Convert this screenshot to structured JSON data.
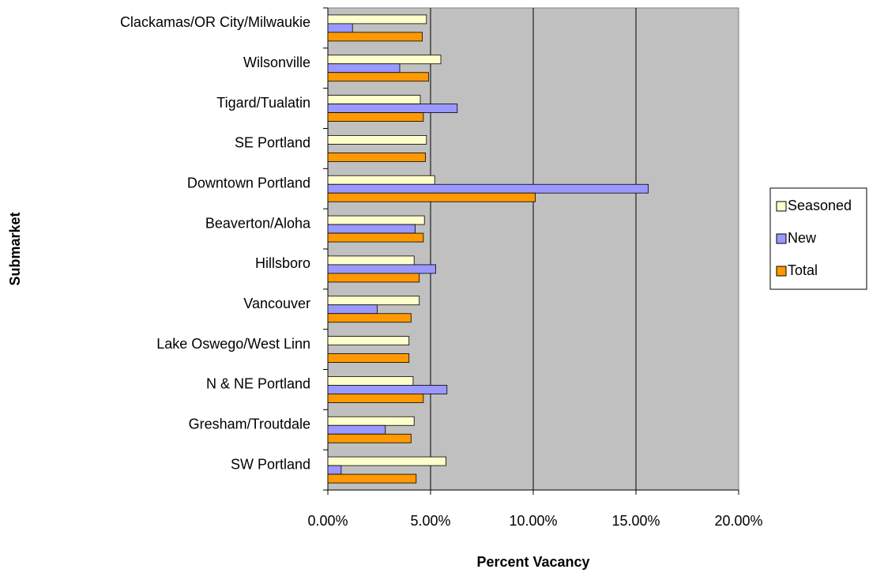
{
  "chart_data": {
    "type": "hbar",
    "x_label": "Percent Vacancy",
    "y_label": "Submarket",
    "categories": [
      "Clackamas/OR City/Milwaukie",
      "Wilsonville",
      "Tigard/Tualatin",
      "SE Portland",
      "Downtown Portland",
      "Beaverton/Aloha",
      "Hillsboro",
      "Vancouver",
      "Lake Oswego/West Linn",
      "N & NE Portland",
      "Gresham/Troutdale",
      "SW Portland"
    ],
    "series": [
      {
        "name": "Seasoned",
        "color": "#ffffcc",
        "values": [
          4.8,
          5.5,
          4.5,
          4.8,
          5.2,
          4.7,
          4.2,
          4.45,
          3.95,
          4.15,
          4.2,
          5.75
        ]
      },
      {
        "name": "New",
        "color": "#9999ff",
        "values": [
          1.2,
          3.5,
          6.3,
          0,
          15.6,
          4.25,
          5.25,
          2.4,
          0,
          5.8,
          2.8,
          0.65
        ]
      },
      {
        "name": "Total",
        "color": "#ff9900",
        "values": [
          4.6,
          4.9,
          4.65,
          4.75,
          10.1,
          4.65,
          4.45,
          4.05,
          3.95,
          4.65,
          4.05,
          4.3
        ]
      }
    ],
    "xlim": [
      0,
      20
    ],
    "xticks": [
      {
        "value": 0,
        "label": "0.00%"
      },
      {
        "value": 5,
        "label": "5.00%"
      },
      {
        "value": 10,
        "label": "10.00%"
      },
      {
        "value": 15,
        "label": "15.00%"
      },
      {
        "value": 20,
        "label": "20.00%"
      }
    ],
    "grid": true,
    "legend": "right"
  }
}
